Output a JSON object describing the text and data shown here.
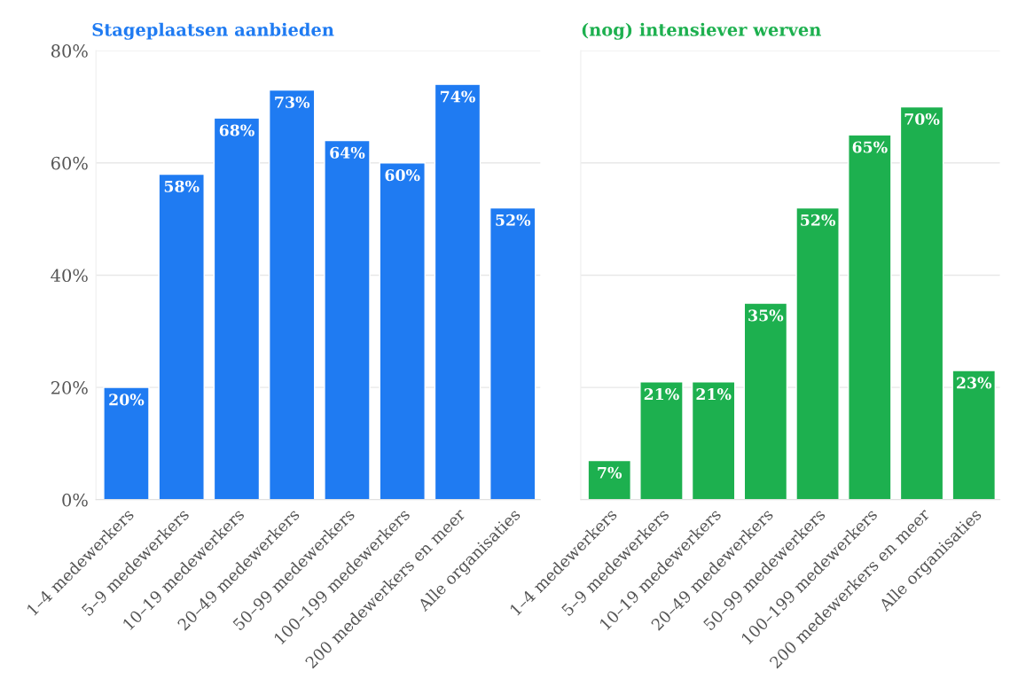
{
  "chart_data": [
    {
      "type": "bar",
      "title": "Stageplaatsen aanbieden",
      "categories": [
        "1–4 medewerkers",
        "5–9 medewerkers",
        "10–19 medewerkers",
        "20–49 medewerkers",
        "50–99 medewerkers",
        "100–199 medewerkers",
        "200 medewerkers en meer",
        "Alle organisaties"
      ],
      "values": [
        20,
        58,
        68,
        73,
        64,
        60,
        74,
        52
      ],
      "color": "#1f7bf2",
      "ylim": [
        0,
        80
      ],
      "yticks": [
        {
          "value": 0,
          "label": "0%"
        },
        {
          "value": 20,
          "label": "20%"
        },
        {
          "value": 40,
          "label": "40%"
        },
        {
          "value": 60,
          "label": "60%"
        },
        {
          "value": 80,
          "label": "80%"
        }
      ],
      "grid": "y",
      "value_labels": [
        "20%",
        "58%",
        "68%",
        "73%",
        "64%",
        "60%",
        "74%",
        "52%"
      ]
    },
    {
      "type": "bar",
      "title": "(nog) intensiever werven",
      "categories": [
        "1–4 medewerkers",
        "5–9 medewerkers",
        "10–19 medewerkers",
        "20–49 medewerkers",
        "50–99 medewerkers",
        "100–199 medewerkers",
        "200 medewerkers en meer",
        "Alle organisaties"
      ],
      "values": [
        7,
        21,
        21,
        35,
        52,
        65,
        70,
        23
      ],
      "color": "#1db04f",
      "ylim": [
        0,
        80
      ],
      "yticks": [
        {
          "value": 0,
          "label": null
        },
        {
          "value": 20,
          "label": null
        },
        {
          "value": 40,
          "label": null
        },
        {
          "value": 60,
          "label": null
        },
        {
          "value": 80,
          "label": null
        }
      ],
      "grid": "y",
      "tick_labels": "x",
      "value_labels": [
        "7%",
        "21%",
        "21%",
        "35%",
        "52%",
        "65%",
        "70%",
        "23%"
      ]
    }
  ]
}
